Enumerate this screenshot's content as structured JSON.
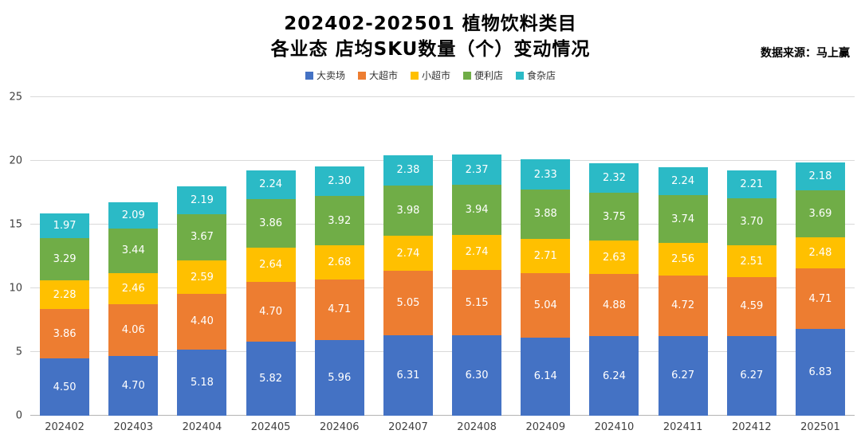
{
  "header": {
    "title_line1": "202402-202501 植物饮料类目",
    "title_line2": "各业态 店均SKU数量（个）变动情况",
    "source": "数据来源：马上赢"
  },
  "chart_data": {
    "type": "bar",
    "stacked": true,
    "title": "202402-202501 植物饮料类目 各业态 店均SKU数量（个）变动情况",
    "xlabel": "",
    "ylabel": "",
    "ylim": [
      0,
      25
    ],
    "yticks": [
      0,
      5,
      10,
      15,
      20,
      25
    ],
    "grid": true,
    "legend_position": "top",
    "categories": [
      "202402",
      "202403",
      "202404",
      "202405",
      "202406",
      "202407",
      "202408",
      "202409",
      "202410",
      "202411",
      "202412",
      "202501"
    ],
    "series": [
      {
        "name": "大卖场",
        "color": "#4472C4",
        "values": [
          4.5,
          4.7,
          5.18,
          5.82,
          5.96,
          6.31,
          6.3,
          6.14,
          6.24,
          6.27,
          6.27,
          6.83
        ]
      },
      {
        "name": "大超市",
        "color": "#ED7D31",
        "values": [
          3.86,
          4.06,
          4.4,
          4.7,
          4.71,
          5.05,
          5.15,
          5.04,
          4.88,
          4.72,
          4.59,
          4.71
        ]
      },
      {
        "name": "小超市",
        "color": "#FFC000",
        "values": [
          2.28,
          2.46,
          2.59,
          2.64,
          2.68,
          2.74,
          2.74,
          2.71,
          2.63,
          2.56,
          2.51,
          2.48
        ]
      },
      {
        "name": "便利店",
        "color": "#70AD47",
        "values": [
          3.29,
          3.44,
          3.67,
          3.86,
          3.92,
          3.98,
          3.94,
          3.88,
          3.75,
          3.74,
          3.7,
          3.69
        ]
      },
      {
        "name": "食杂店",
        "color": "#2BBAC6",
        "values": [
          1.97,
          2.09,
          2.19,
          2.24,
          2.3,
          2.38,
          2.37,
          2.33,
          2.32,
          2.24,
          2.21,
          2.18
        ]
      }
    ]
  }
}
